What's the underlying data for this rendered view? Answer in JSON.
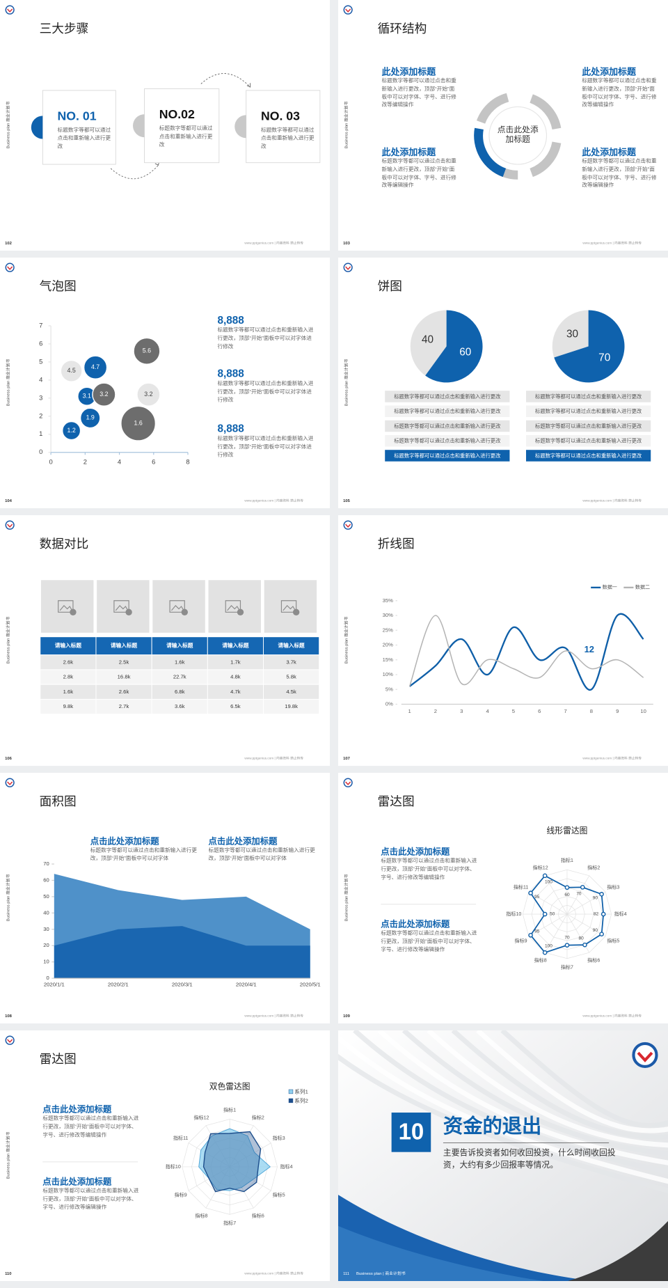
{
  "common": {
    "side_label": "Business plan 商业计划书",
    "footer": "www.pptgenius.com | 内容资料 禁止转传"
  },
  "slides": [
    {
      "number": "102",
      "title": "三大步骤",
      "steps": [
        {
          "label": "NO. 01",
          "text": "标题数字等都可以通过点击和重新输入进行更改"
        },
        {
          "label": "NO.02",
          "text": "标题数字等都可以通过点击和重新输入进行更改"
        },
        {
          "label": "NO. 03",
          "text": "标题数字等都可以通过点击和重新输入进行更改"
        }
      ]
    },
    {
      "number": "103",
      "title": "循环结构",
      "center": "点击此处添加标题",
      "blocks": [
        {
          "title": "此处添加标题",
          "text": "标题数字等都可以通过点击和重新输入进行更改，顶部“开始”面板中可以对字体、字号、进行修改等编辑操作"
        },
        {
          "title": "此处添加标题",
          "text": "标题数字等都可以通过点击和重新输入进行更改，顶部“开始”面板中可以对字体、字号、进行修改等编辑操作"
        },
        {
          "title": "此处添加标题",
          "text": "标题数字等都可以通过点击和重新输入进行更改，顶部“开始”面板中可以对字体、字号、进行修改等编辑操作"
        },
        {
          "title": "此处添加标题",
          "text": "标题数字等都可以通过点击和重新输入进行更改，顶部“开始”面板中可以对字体、字号、进行修改等编辑操作"
        }
      ]
    },
    {
      "number": "104",
      "title": "气泡图",
      "chart": {
        "type": "bubble",
        "x": [
          1.2,
          2.3,
          2.1,
          2.6,
          1.2,
          3.1,
          5.6,
          5.7,
          5.1
        ],
        "values": [
          1.2,
          1.9,
          3.1,
          4.7,
          4.5,
          3.2,
          5.6,
          3.2,
          1.6
        ],
        "sizes": [
          11,
          12,
          11,
          14,
          13,
          14,
          16,
          14,
          21
        ],
        "colors": [
          "#0f62ad",
          "#0f62ad",
          "#0f62ad",
          "#0f62ad",
          "#e6e6e6",
          "#6d6d6d",
          "#6d6d6d",
          "#e6e6e6",
          "#6d6d6d"
        ],
        "xlim": [
          0,
          8
        ],
        "xticks": [
          0,
          2,
          4,
          6,
          8
        ],
        "ylim": [
          0,
          7
        ],
        "yticks": [
          0,
          1,
          2,
          3,
          4,
          5,
          6,
          7
        ]
      },
      "stats": [
        {
          "value": "8,888",
          "text": "标题数字等都可以通过点击和重新输入进行更改，顶部“开始”面板中可以对字体进行修改"
        },
        {
          "value": "8,888",
          "text": "标题数字等都可以通过点击和重新输入进行更改，顶部“开始”面板中可以对字体进行修改"
        },
        {
          "value": "8,888",
          "text": "标题数字等都可以通过点击和重新输入进行更改，顶部“开始”面板中可以对字体进行修改"
        }
      ]
    },
    {
      "number": "105",
      "title": "饼图",
      "charts": [
        {
          "type": "pie",
          "values": [
            40,
            60
          ],
          "colors": [
            "#e3e3e3",
            "#0f62ad"
          ]
        },
        {
          "type": "pie",
          "values": [
            30,
            70
          ],
          "colors": [
            "#e3e3e3",
            "#0f62ad"
          ]
        }
      ],
      "lists": [
        [
          "标题数字等都可以通过点击和重新输入进行更改",
          "标题数字等都可以通过点击和重新输入进行更改",
          "标题数字等都可以通过点击和重新输入进行更改",
          "标题数字等都可以通过点击和重新输入进行更改",
          "标题数字等都可以通过点击和重新输入进行更改"
        ],
        [
          "标题数字等都可以通过点击和重新输入进行更改",
          "标题数字等都可以通过点击和重新输入进行更改",
          "标题数字等都可以通过点击和重新输入进行更改",
          "标题数字等都可以通过点击和重新输入进行更改",
          "标题数字等都可以通过点击和重新输入进行更改"
        ]
      ]
    },
    {
      "number": "106",
      "title": "数据对比",
      "table": {
        "header": [
          "请输入标题",
          "请输入标题",
          "请输入标题",
          "请输入标题",
          "请输入标题"
        ],
        "rows": [
          [
            "2.6k",
            "2.5k",
            "1.6k",
            "1.7k",
            "3.7k"
          ],
          [
            "2.8k",
            "16.8k",
            "22.7k",
            "4.8k",
            "5.8k"
          ],
          [
            "1.6k",
            "2.6k",
            "6.8k",
            "4.7k",
            "4.5k"
          ],
          [
            "9.8k",
            "2.7k",
            "3.6k",
            "6.5k",
            "19.8k"
          ]
        ]
      }
    },
    {
      "number": "107",
      "title": "折线图",
      "chart": {
        "type": "line",
        "categories": [
          "1",
          "2",
          "3",
          "4",
          "5",
          "6",
          "7",
          "8",
          "9",
          "10"
        ],
        "series": [
          {
            "name": "数据一",
            "color": "#0f5fa8",
            "values": [
              6,
              13,
              22,
              10,
              26,
              15,
              19,
              5,
              30,
              22
            ]
          },
          {
            "name": "数据二",
            "color": "#b4b4b4",
            "values": [
              6,
              30,
              7,
              15,
              12,
              9,
              18,
              12,
              15,
              9
            ]
          }
        ],
        "ylim": [
          0,
          35
        ],
        "yticks": [
          {
            "value": 0,
            "label": "0%"
          },
          {
            "value": 5,
            "label": "5%"
          },
          {
            "value": 10,
            "label": "10%"
          },
          {
            "value": 15,
            "label": "15%"
          },
          {
            "value": 20,
            "label": "20%"
          },
          {
            "value": 25,
            "label": "25%"
          },
          {
            "value": 30,
            "label": "30%"
          },
          {
            "value": 35,
            "label": "35%"
          }
        ],
        "annotation": "12"
      }
    },
    {
      "number": "108",
      "title": "面积图",
      "chart": {
        "type": "area",
        "categories": [
          "2020/1/1",
          "2020/2/1",
          "2020/3/1",
          "2020/4/1",
          "2020/5/1"
        ],
        "series": [
          {
            "color": "#4f91c9",
            "values": [
              64,
              54,
              48,
              50,
              30
            ]
          },
          {
            "color": "#1a66b0",
            "values": [
              20,
              30,
              32,
              20,
              20
            ]
          }
        ],
        "ylim": [
          0,
          70
        ],
        "yticks": [
          0,
          10,
          20,
          30,
          40,
          50,
          60,
          70
        ]
      },
      "blocks": [
        {
          "title": "点击此处添加标题",
          "text": "标题数字等都可以通过点击和重新输入进行更改，顶部“开始”面板中可以对字体"
        },
        {
          "title": "点击此处添加标题",
          "text": "标题数字等都可以通过点击和重新输入进行更改，顶部“开始”面板中可以对字体"
        }
      ]
    },
    {
      "number": "109",
      "title": "雷达图",
      "chart": {
        "type": "radar",
        "title": "线形雷达图",
        "categories": [
          "指标1",
          "指标2",
          "指标3",
          "指标4",
          "指标5",
          "指标6",
          "指标7",
          "指标8",
          "指标9",
          "指标10",
          "指标11",
          "指标12"
        ],
        "values": [
          60,
          70,
          90,
          82,
          90,
          80,
          70,
          100,
          95,
          50,
          95,
          100
        ],
        "color": "#0f5fa8",
        "rlim": [
          0,
          100
        ]
      },
      "blocks": [
        {
          "title": "点击此处添加标题",
          "text": "标题数字等都可以通过点击和重新输入进行更改，顶部“开始”面板中可以对字体、字号、进行修改等编辑操作"
        },
        {
          "title": "点击此处添加标题",
          "text": "标题数字等都可以通过点击和重新输入进行更改，顶部“开始”面板中可以对字体、字号、进行修改等编辑操作"
        }
      ]
    },
    {
      "number": "110",
      "title": "雷达图",
      "chart": {
        "type": "radar",
        "title": "双色雷达图",
        "categories": [
          "指标1",
          "指标2",
          "指标3",
          "指标4",
          "指标5",
          "指标6",
          "指标7",
          "指标8",
          "指标9",
          "指标10",
          "指标11",
          "指标12"
        ],
        "series": [
          {
            "name": "系列1",
            "color": "#8fd0ef",
            "values": [
              80,
              75,
              60,
              85,
              55,
              50,
              50,
              55,
              50,
              65,
              70,
              75
            ]
          },
          {
            "name": "系列2",
            "color": "#1d4e8c",
            "values": [
              70,
              85,
              75,
              60,
              65,
              60,
              45,
              60,
              50,
              55,
              60,
              80
            ]
          }
        ],
        "rlim": [
          0,
          100
        ]
      },
      "blocks": [
        {
          "title": "点击此处添加标题",
          "text": "标题数字等都可以通过点击和重新输入进行更改，顶部“开始”面板中可以对字体、字号、进行修改等编辑操作"
        },
        {
          "title": "点击此处添加标题",
          "text": "标题数字等都可以通过点击和重新输入进行更改，顶部“开始”面板中可以对字体、字号、进行修改等编辑操作"
        }
      ]
    },
    {
      "number": "111",
      "section": "10",
      "title": "资金的退出",
      "subtitle": "主要告诉投资者如何收回投资，什么时间收回投资，大约有多少回报率等情况。",
      "footer": "Business plan | 商业计划书"
    }
  ]
}
